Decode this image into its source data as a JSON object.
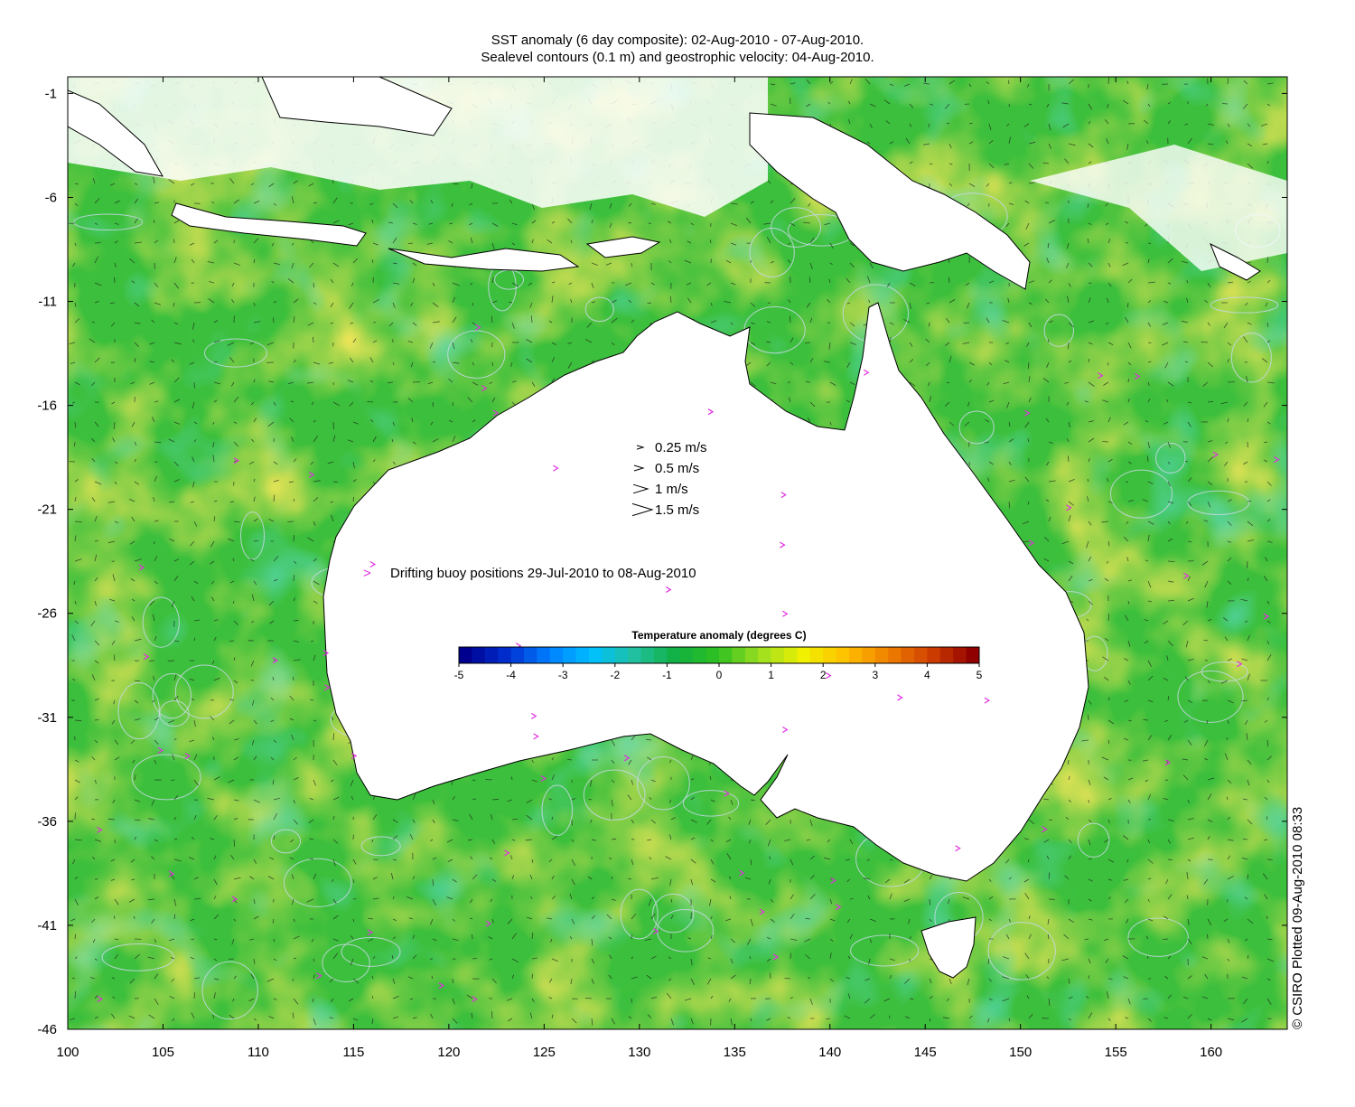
{
  "title": {
    "line1": "SST anomaly (6 day composite): 02-Aug-2010 - 07-Aug-2010.",
    "line2": "Sealevel contours (0.1 m) and geostrophic velocity: 04-Aug-2010."
  },
  "axes": {
    "x_ticks": [
      "100",
      "105",
      "110",
      "115",
      "120",
      "125",
      "130",
      "135",
      "140",
      "145",
      "150",
      "155",
      "160"
    ],
    "y_ticks": [
      "-1",
      "-6",
      "-11",
      "-16",
      "-21",
      "-26",
      "-31",
      "-36",
      "-41",
      "-46"
    ],
    "lon_range": [
      100,
      164
    ],
    "lat_range": [
      -46,
      -0.2
    ]
  },
  "velocity_legend": [
    {
      "label": "0.25 m/s",
      "speed": 0.25
    },
    {
      "label": "0.5 m/s",
      "speed": 0.5
    },
    {
      "label": "1 m/s",
      "speed": 1
    },
    {
      "label": "1.5 m/s",
      "speed": 1.5
    }
  ],
  "buoy_legend": {
    "symbol": ">",
    "label": "Drifting buoy positions 29-Jul-2010 to 08-Aug-2010",
    "color": "#e030e0"
  },
  "colorbar": {
    "title": "Temperature anomaly (degrees C)",
    "ticks": [
      "-5",
      "-4",
      "-3",
      "-2",
      "-1",
      "0",
      "1",
      "2",
      "3",
      "4",
      "5"
    ],
    "range": [
      -5,
      5
    ],
    "colors": [
      "#00008f",
      "#0030d0",
      "#0080ff",
      "#00c0ff",
      "#20c0a0",
      "#10b040",
      "#30c020",
      "#a0e020",
      "#f0f000",
      "#ffc000",
      "#f08000",
      "#d04000",
      "#900000"
    ]
  },
  "credit": "© CSIRO Plotted 09-Aug-2010 08:33",
  "colors": {
    "ocean_base": "#3cbf3c",
    "warm": "#f0c020",
    "land": "#ffffff",
    "coast": "#000000",
    "contour": "#c8d8e8"
  }
}
